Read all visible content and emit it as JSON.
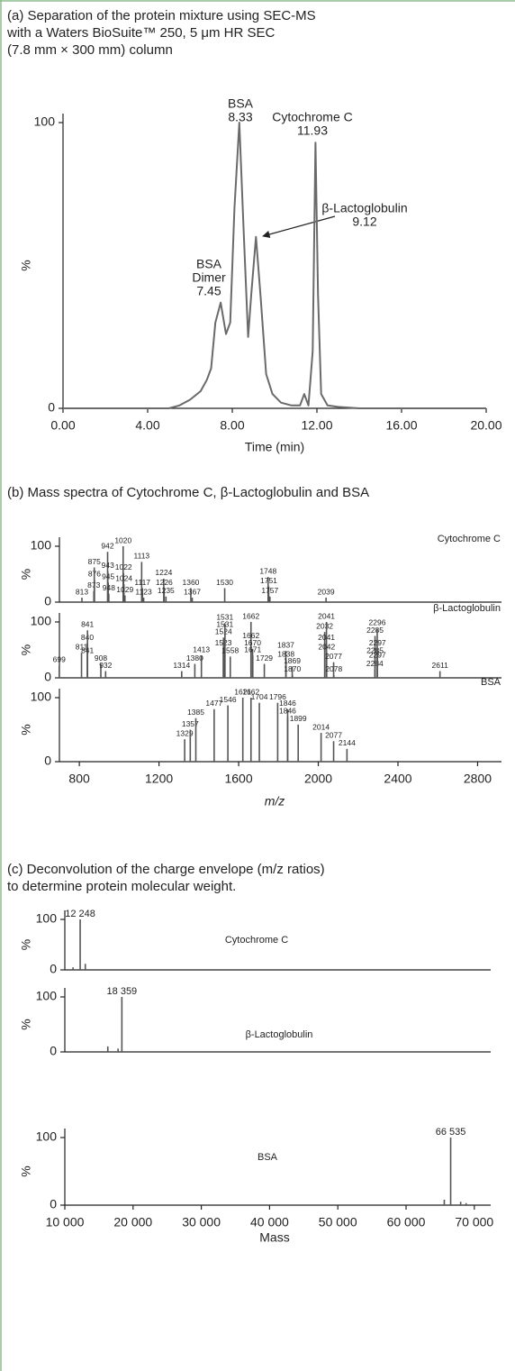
{
  "chart_data": [
    {
      "type": "line",
      "title": [
        "(a) Separation of the protein mixture using SEC-MS",
        "with a Waters BioSuite™ 250, 5 μm HR SEC",
        "(7.8 mm × 300 mm) column"
      ],
      "x": [
        0,
        5,
        5.5,
        6,
        6.5,
        6.8,
        7.0,
        7.2,
        7.45,
        7.7,
        7.9,
        8.1,
        8.33,
        8.55,
        8.75,
        8.9,
        9.12,
        9.35,
        9.6,
        9.9,
        10.3,
        10.8,
        11.2,
        11.4,
        11.6,
        11.8,
        11.93,
        12.05,
        12.2,
        12.5,
        13,
        14,
        20
      ],
      "values": [
        0,
        0,
        1,
        3,
        6,
        10,
        14,
        30,
        37,
        26,
        30,
        70,
        100,
        60,
        25,
        40,
        60,
        38,
        12,
        5,
        2,
        1,
        1,
        5,
        1,
        20,
        93,
        40,
        5,
        1,
        0.5,
        0,
        0
      ],
      "color": "#6a6a6a",
      "xlim": [
        0,
        20
      ],
      "ylim": [
        0,
        100
      ],
      "xticks": [
        {
          "value": 0,
          "label": "0.00"
        },
        {
          "value": 4,
          "label": "4.00"
        },
        {
          "value": 8,
          "label": "8.00"
        },
        {
          "value": 12,
          "label": "12.00"
        },
        {
          "value": 16,
          "label": "16.00"
        },
        {
          "value": 20,
          "label": "20.00"
        }
      ],
      "yticks": [
        0,
        100
      ],
      "xlabel": "Time (min)",
      "ylabel": "%",
      "annotations": [
        [
          "BSA",
          "8.33"
        ],
        [
          "Cytochrome C",
          "11.93"
        ],
        [
          "β-Lactoglobulin",
          "9.12"
        ],
        [
          "BSA",
          "Dimer",
          "7.45"
        ]
      ]
    },
    {
      "type": "spectrum",
      "title": "(b) Mass spectra of Cytochrome C, β-Lactoglobulin and BSA",
      "name": "Cytochrome C",
      "x": [
        813,
        873,
        876,
        875,
        942,
        943,
        945,
        948,
        1020,
        1022,
        1024,
        1029,
        1113,
        1117,
        1123,
        1224,
        1226,
        1235,
        1360,
        1367,
        1530,
        1748,
        1751,
        1757,
        2039
      ],
      "values": [
        8,
        20,
        40,
        62,
        90,
        55,
        35,
        15,
        100,
        52,
        32,
        12,
        72,
        25,
        8,
        42,
        25,
        10,
        25,
        8,
        25,
        45,
        28,
        10,
        8
      ],
      "color": "#555555",
      "xlim": [
        700,
        2920
      ],
      "ylim": [
        0,
        100
      ],
      "yticks": [
        0,
        100
      ],
      "ylabel": "%"
    },
    {
      "type": "spectrum",
      "name": "β-Lactoglobulin",
      "x": [
        699,
        811,
        840,
        841,
        841,
        908,
        932,
        1314,
        1380,
        1413,
        1523,
        1524,
        1531,
        1531,
        1558,
        1662,
        1662,
        1670,
        1671,
        1729,
        1837,
        1838,
        1869,
        1870,
        2032,
        2041,
        2041,
        2042,
        2077,
        2078,
        2284,
        2285,
        2285,
        2296,
        2297,
        2297,
        2611
      ],
      "values": [
        22,
        45,
        62,
        85,
        38,
        25,
        12,
        12,
        25,
        40,
        52,
        72,
        98,
        85,
        38,
        100,
        65,
        52,
        40,
        25,
        48,
        32,
        20,
        5,
        82,
        100,
        62,
        45,
        28,
        5,
        15,
        75,
        38,
        88,
        52,
        30,
        12
      ],
      "color": "#555555",
      "xlim": [
        700,
        2920
      ],
      "ylim": [
        0,
        100
      ],
      "yticks": [
        0,
        100
      ],
      "ylabel": "%"
    },
    {
      "type": "spectrum",
      "name": "BSA",
      "x": [
        1329,
        1357,
        1385,
        1477,
        1546,
        1621,
        1662,
        1704,
        1796,
        1846,
        1846,
        1899,
        2014,
        2077,
        2144
      ],
      "values": [
        35,
        50,
        68,
        82,
        88,
        100,
        100,
        92,
        92,
        82,
        70,
        58,
        45,
        32,
        20
      ],
      "color": "#555555",
      "xlim": [
        700,
        2920
      ],
      "ylim": [
        0,
        100
      ],
      "yticks": [
        0,
        100
      ],
      "ylabel": "%",
      "xticks": [
        800,
        1200,
        1600,
        2000,
        2400,
        2800
      ],
      "xlabel": "m/z"
    },
    {
      "type": "spectrum",
      "title": [
        "(c) Deconvolution of the charge envelope (m/z ratios)",
        "to determine protein molecular weight."
      ],
      "name": "Cytochrome C",
      "x": [
        12248,
        13000,
        11200
      ],
      "values": [
        100,
        12,
        5
      ],
      "x_labels": [
        "12 248",
        null,
        null
      ],
      "color": "#555555",
      "xlim": [
        10000,
        72400
      ],
      "ylim": [
        0,
        100
      ],
      "yticks": [
        0,
        100
      ],
      "ylabel": "%"
    },
    {
      "type": "spectrum",
      "name": "β-Lactoglobulin",
      "x": [
        18359,
        16300,
        17800
      ],
      "values": [
        100,
        10,
        6
      ],
      "x_labels": [
        "18 359",
        null,
        null
      ],
      "color": "#555555",
      "xlim": [
        10000,
        72400
      ],
      "ylim": [
        0,
        100
      ],
      "yticks": [
        0,
        100
      ],
      "ylabel": "%"
    },
    {
      "type": "spectrum",
      "name": "BSA",
      "x": [
        66535,
        65600,
        68000,
        68800
      ],
      "values": [
        100,
        8,
        5,
        3
      ],
      "x_labels": [
        "66 535",
        null,
        null,
        null
      ],
      "color": "#555555",
      "xlim": [
        10000,
        72400
      ],
      "ylim": [
        0,
        100
      ],
      "yticks": [
        0,
        100
      ],
      "ylabel": "%",
      "xticks": [
        {
          "value": 10000,
          "label": "10 000"
        },
        {
          "value": 20000,
          "label": "20 000"
        },
        {
          "value": 30000,
          "label": "30 000"
        },
        {
          "value": 40000,
          "label": "40 000"
        },
        {
          "value": 50000,
          "label": "50 000"
        },
        {
          "value": 60000,
          "label": "60 000"
        },
        {
          "value": 70000,
          "label": "70 000"
        }
      ],
      "xlabel": "Mass"
    }
  ]
}
